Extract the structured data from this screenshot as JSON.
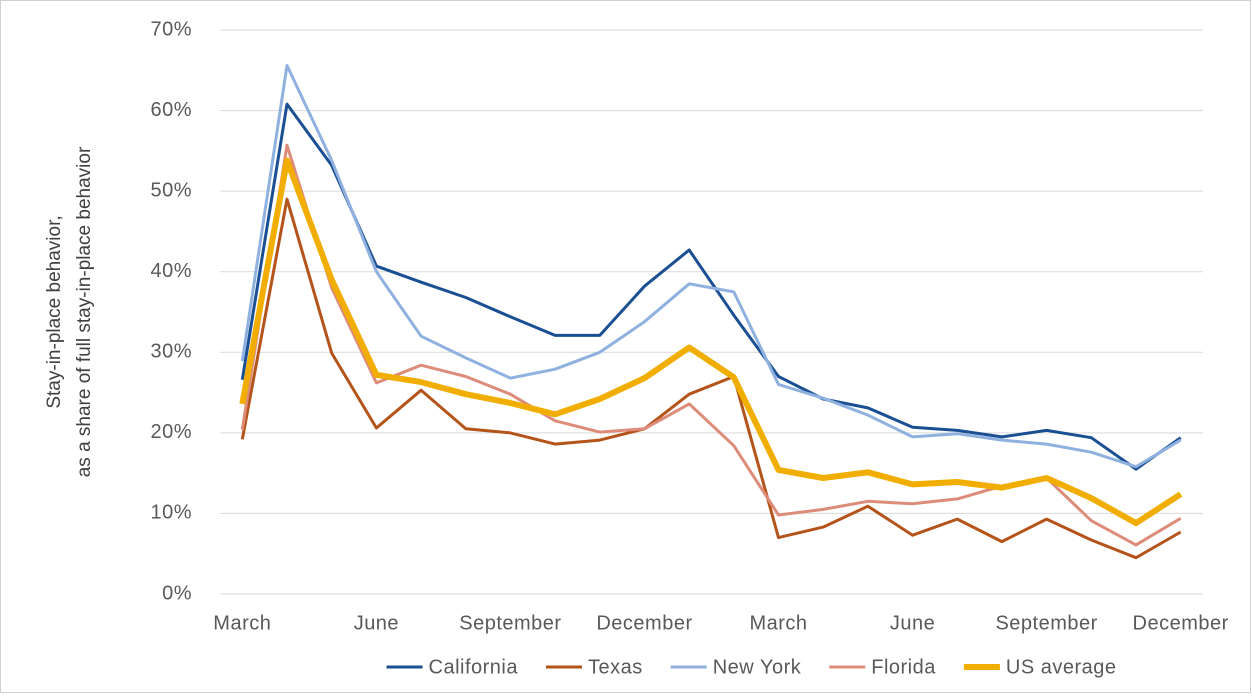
{
  "chart_data": {
    "type": "line",
    "y_label": [
      "Stay-in-place behavior,",
      "as a share of full stay-in-place behavior"
    ],
    "categories": [
      "March",
      null,
      null,
      "June",
      null,
      null,
      "September",
      null,
      null,
      "December",
      null,
      null,
      "March",
      null,
      null,
      "June",
      null,
      null,
      "September",
      null,
      null,
      "December"
    ],
    "ylim": [
      0,
      70
    ],
    "yticks": [
      {
        "value": 0,
        "label": "0%"
      },
      {
        "value": 10,
        "label": "10%"
      },
      {
        "value": 20,
        "label": "20%"
      },
      {
        "value": 30,
        "label": "30%"
      },
      {
        "value": 40,
        "label": "40%"
      },
      {
        "value": 50,
        "label": "50%"
      },
      {
        "value": 60,
        "label": "60%"
      },
      {
        "value": 70,
        "label": "70%"
      }
    ],
    "grid": true,
    "legend": "bottom",
    "series": [
      {
        "name": "California",
        "color": "#1b4f93",
        "values": [
          26.6,
          60.8,
          53.2,
          40.7,
          38.7,
          36.8,
          34.4,
          32.1,
          32.1,
          38.2,
          42.7,
          34.6,
          27.0,
          24.2,
          23.1,
          20.7,
          20.3,
          19.5,
          20.3,
          19.4,
          15.5,
          19.4
        ]
      },
      {
        "name": "Texas",
        "color": "#b5541a",
        "values": [
          19.2,
          49.0,
          29.9,
          20.6,
          25.3,
          20.5,
          20.0,
          18.6,
          19.1,
          20.5,
          24.8,
          27.0,
          7.0,
          8.3,
          10.9,
          7.3,
          9.3,
          6.5,
          9.3,
          6.7,
          4.5,
          7.7
        ]
      },
      {
        "name": "New York",
        "color": "#8fb1df",
        "values": [
          28.9,
          65.6,
          53.8,
          40.0,
          32.0,
          29.3,
          26.8,
          27.9,
          30.0,
          33.8,
          38.5,
          37.5,
          26.0,
          24.3,
          22.2,
          19.5,
          19.9,
          19.1,
          18.6,
          17.6,
          15.8,
          19.1
        ]
      },
      {
        "name": "Florida",
        "color": "#de8c7a",
        "values": [
          20.4,
          55.7,
          38.0,
          26.2,
          28.4,
          27.0,
          24.8,
          21.5,
          20.1,
          20.5,
          23.6,
          18.4,
          9.8,
          10.5,
          11.5,
          11.2,
          11.8,
          13.4,
          14.4,
          9.1,
          6.1,
          9.4
        ]
      },
      {
        "name": "US average",
        "color": "#f2ae00",
        "width": 6,
        "values": [
          23.6,
          53.8,
          39.0,
          27.2,
          26.3,
          24.8,
          23.7,
          22.3,
          24.2,
          26.8,
          30.6,
          26.9,
          15.4,
          14.4,
          15.1,
          13.6,
          13.9,
          13.2,
          14.4,
          11.9,
          8.8,
          12.4
        ]
      }
    ]
  }
}
